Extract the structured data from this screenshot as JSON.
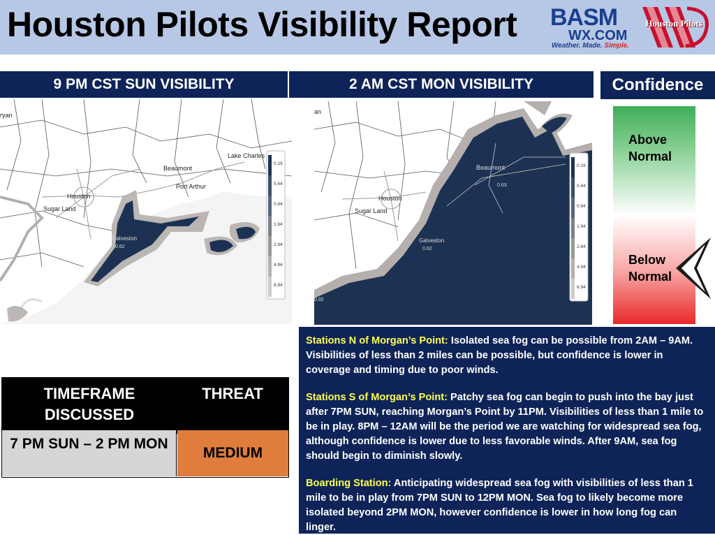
{
  "header": {
    "title": "Houston Pilots Visibility Report",
    "basm_logo_main": "BASM",
    "basm_logo_site": "WX.COM",
    "basm_tagline_left": "Weather. Made. ",
    "basm_tagline_right": "Simple.",
    "hp_logo_text": "Houston Pilots"
  },
  "maps": {
    "left_title": "9 PM CST SUN VISIBILITY",
    "right_title": "2 AM CST MON VISIBILITY",
    "city_labels": {
      "bryan": "ryan",
      "lake_charles": "Lake Charles",
      "beaumont": "Beaumont",
      "port_arthur": "Port Arthur",
      "houston": "Houston",
      "sugar_land": "Sugar Land",
      "galveston": "Galveston",
      "galveston_val": "0.62",
      "edge_val": "0.92",
      "bryan2": "an",
      "beaumont_val": "0.63"
    },
    "legend_values": [
      "0.19",
      "0.44",
      "0.94",
      "1.94",
      "2.94",
      "4.94",
      "6.94"
    ]
  },
  "confidence": {
    "title": "Confidence",
    "above": "Above Normal",
    "below": "Below Normal",
    "level": "below"
  },
  "threat_table": {
    "col1_header": "TIMEFRAME DISCUSSED",
    "col2_header": "THREAT",
    "timeframe": "7 PM SUN – 2 PM MON",
    "threat": "MEDIUM"
  },
  "notes": [
    {
      "heading": "Stations N of Morgan’s Point:",
      "body": " Isolated sea fog can be possible from 2AM – 9AM. Visibilities of less than 2 miles can be possible, but confidence is lower in coverage and timing due to poor winds."
    },
    {
      "heading": "Stations S of Morgan’s Point:",
      "body": " Patchy sea fog can begin to push into the bay just after 7PM SUN, reaching Morgan’s Point by 11PM. Visibilities of less than 1 mile to be in play. 8PM – 12AM will be the period we are watching for widespread sea fog, although confidence is lower due to less favorable winds. After 9AM, sea fog should begin to diminish slowly."
    },
    {
      "heading": "Boarding Station:",
      "body": " Anticipating widespread sea fog with visibilities of less than 1 mile to be in play from 7PM SUN to 12PM MON. Sea fog to likely become more isolated beyond 2PM MON, however confidence is lower in how long fog can linger."
    }
  ],
  "colors": {
    "header_bg": "#b7c8e6",
    "navy": "#0e2458",
    "fog_dark": "#1d3252",
    "threat_medium": "#e07d3d",
    "highlight": "#ffff4d"
  }
}
